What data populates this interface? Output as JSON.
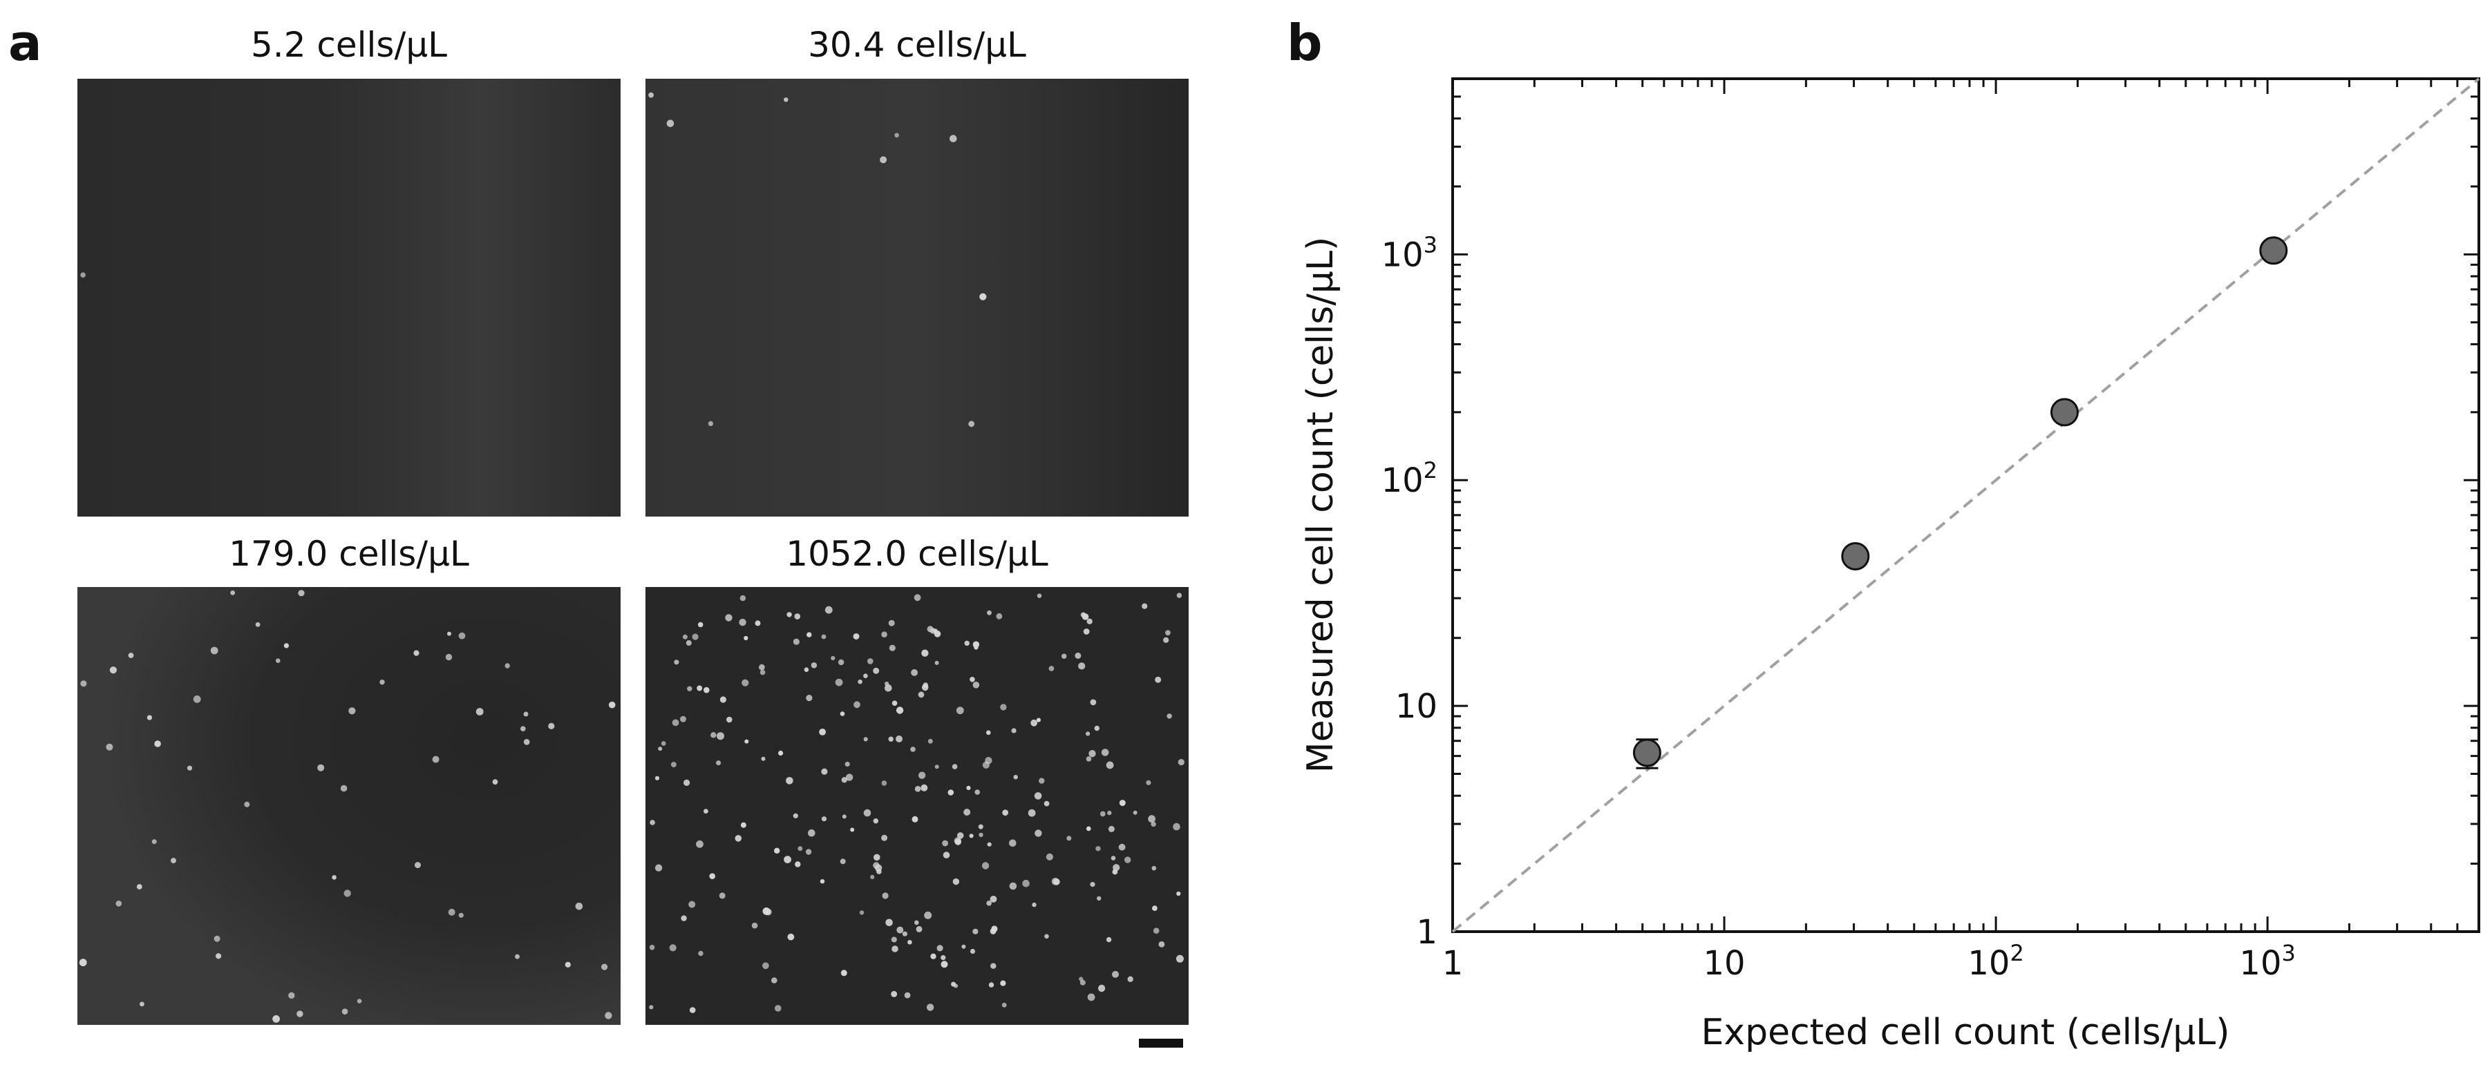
{
  "panel_a": {
    "letter": "a",
    "images": [
      {
        "title": "5.2 cells/μL",
        "cell_count_shown": 1
      },
      {
        "title": "30.4 cells/μL",
        "cell_count_shown": 9
      },
      {
        "title": "179.0 cells/μL",
        "cell_count_shown": 55
      },
      {
        "title": "1052.0 cells/μL",
        "cell_count_shown": 260
      }
    ]
  },
  "panel_b": {
    "letter": "b"
  },
  "chart_data": {
    "type": "scatter",
    "xlabel": "Expected cell count (cells/μL)",
    "ylabel": "Measured cell count (cells/μL)",
    "xscale": "log",
    "yscale": "log",
    "xlim": [
      1,
      6000
    ],
    "ylim": [
      1,
      6000
    ],
    "x_tick_labels": [
      "1",
      "10",
      "10^2",
      "10^3"
    ],
    "y_tick_labels": [
      "1",
      "10",
      "10^2",
      "10^3"
    ],
    "x": [
      5.2,
      30.4,
      179.0,
      1052.0
    ],
    "y": [
      6.2,
      46,
      200,
      1040
    ],
    "y_err": [
      0.9,
      0,
      0,
      0
    ],
    "reference_line": "y = x (dashed)",
    "marker_color": "#6b6b6b",
    "line_color": "#a0a0a0"
  }
}
